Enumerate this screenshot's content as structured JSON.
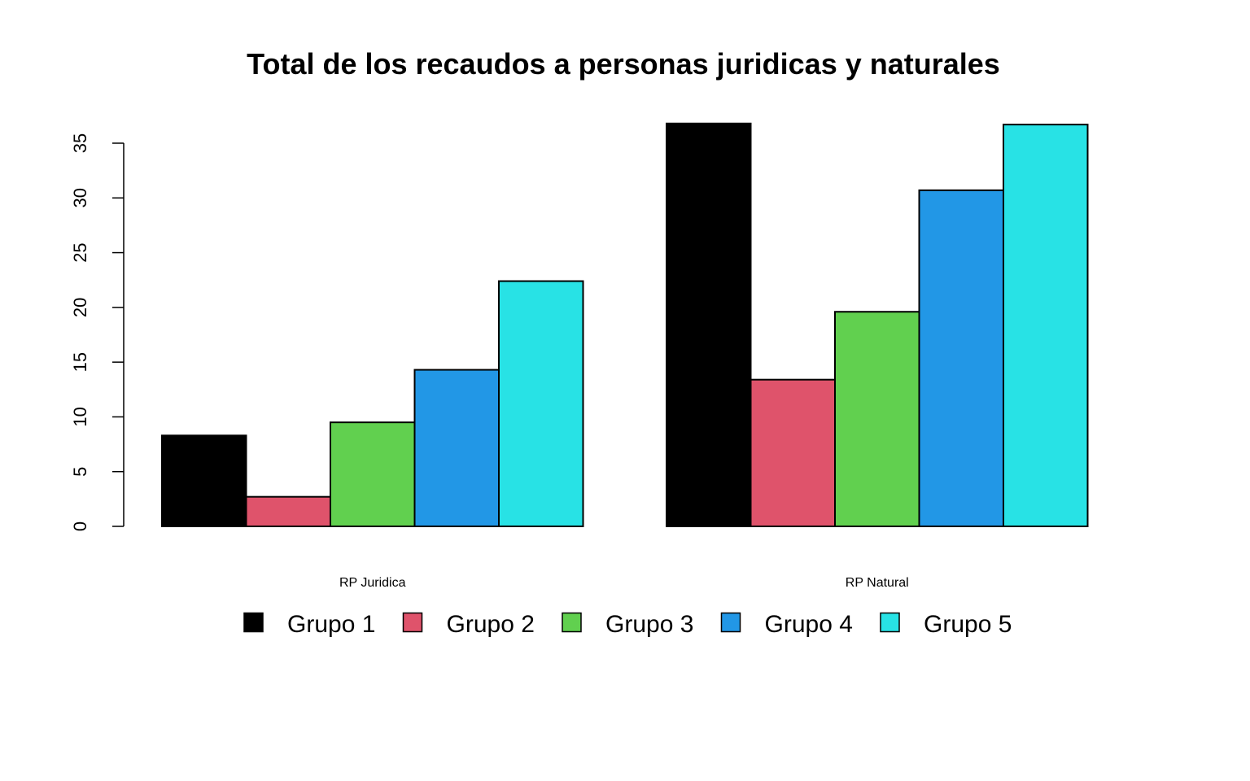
{
  "chart_data": {
    "type": "bar",
    "title": "Total de los recaudos a personas juridicas y naturales",
    "xlabel": "",
    "ylabel": "",
    "ylim": [
      0,
      35
    ],
    "yticks": [
      0,
      5,
      10,
      15,
      20,
      25,
      30,
      35
    ],
    "categories": [
      "RP Juridica",
      "RP Natural"
    ],
    "series": [
      {
        "name": "Grupo 1",
        "color": "#000000",
        "values": [
          8.3,
          36.8
        ]
      },
      {
        "name": "Grupo 2",
        "color": "#DF536B",
        "values": [
          2.7,
          13.4
        ]
      },
      {
        "name": "Grupo 3",
        "color": "#61D04F",
        "values": [
          9.5,
          19.6
        ]
      },
      {
        "name": "Grupo 4",
        "color": "#2297E6",
        "values": [
          14.3,
          30.7
        ]
      },
      {
        "name": "Grupo 5",
        "color": "#28E2E5",
        "values": [
          22.4,
          36.7
        ]
      }
    ],
    "grid": false,
    "legend_position": "bottom",
    "bar_layout": "grouped"
  }
}
